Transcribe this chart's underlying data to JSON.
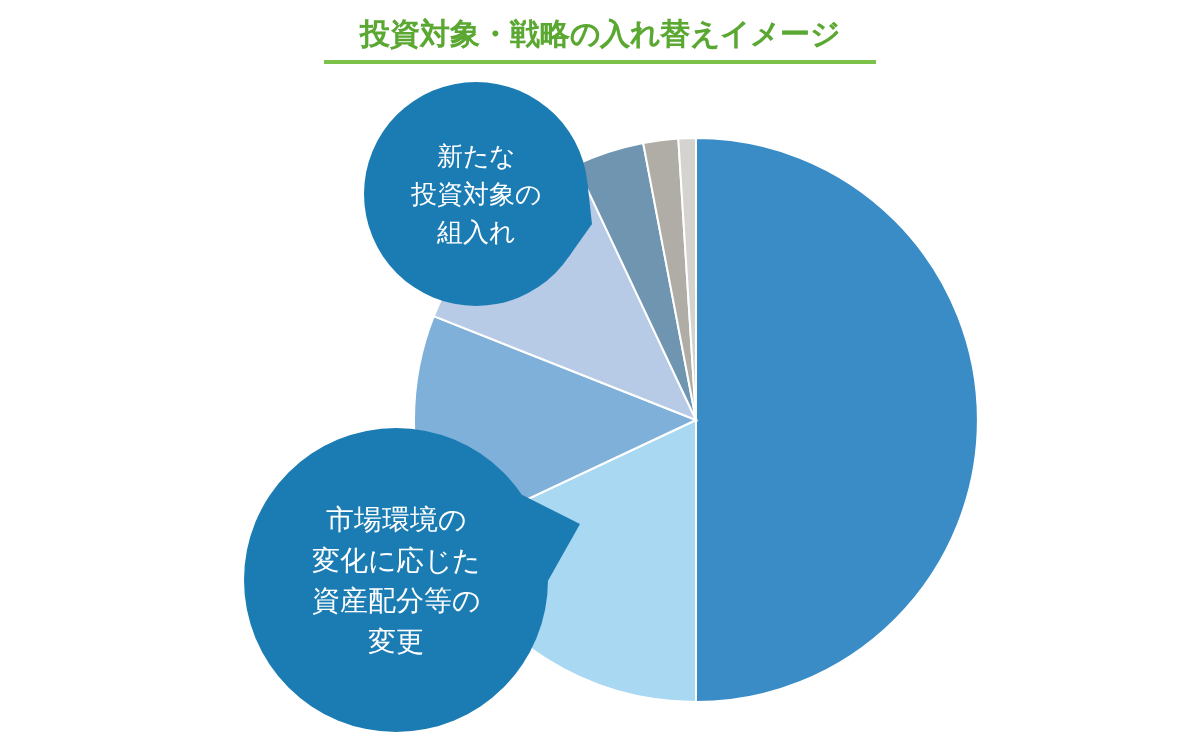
{
  "chart_data": {
    "type": "pie",
    "title": "投資対象・戦略の入れ替えイメージ",
    "categories": [
      null,
      null,
      null,
      null,
      null,
      null,
      null
    ],
    "values": [
      50,
      18,
      13,
      12,
      4,
      2,
      1
    ],
    "colors": [
      "#3a8cc6",
      "#a9d8f2",
      "#7fb0da",
      "#b7cbe6",
      "#6f95b0",
      "#b0aca6",
      "#d5d3cf"
    ],
    "annotations": [
      "新たな投資対象の組入れ",
      "市場環境の変化に応じた資産配分等の変更"
    ]
  }
}
